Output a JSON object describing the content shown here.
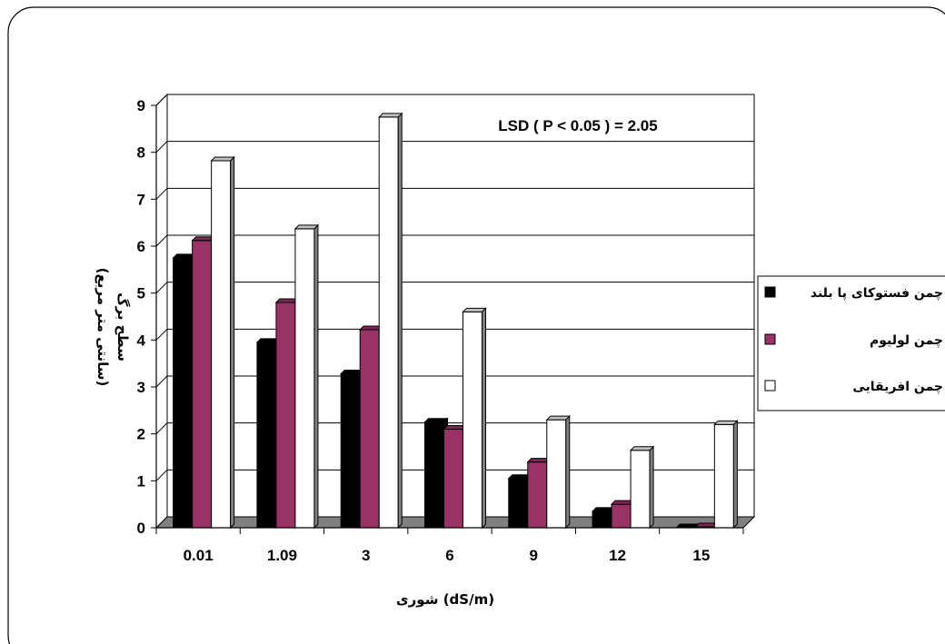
{
  "chart_data": {
    "type": "bar",
    "categories": [
      "0.01",
      "1.09",
      "3",
      "6",
      "9",
      "12",
      "15"
    ],
    "series": [
      {
        "name": "چمن فستوکای پا بلند",
        "color": "#000000",
        "values": [
          5.75,
          3.95,
          3.28,
          2.25,
          1.05,
          0.35,
          0.0
        ]
      },
      {
        "name": "چمن لولیوم",
        "color": "#993366",
        "values": [
          6.12,
          4.8,
          4.22,
          2.1,
          1.4,
          0.5,
          0.02
        ]
      },
      {
        "name": "چمن افریقایی",
        "color": "#ffffff",
        "values": [
          7.82,
          6.37,
          8.75,
          4.6,
          2.3,
          1.65,
          2.2
        ]
      }
    ],
    "ylim": [
      0,
      9
    ],
    "yticks": [
      "0",
      "1",
      "2",
      "3",
      "4",
      "5",
      "6",
      "7",
      "8",
      "9"
    ],
    "xlabel": "شوری (dS/m)",
    "ylabel_line1": "سطح برگ",
    "ylabel_line2": "(سانتی متر مربع)",
    "annotation": "LSD ( P < 0.05 ) = 2.05",
    "grid": true,
    "legend_position": "right",
    "floor_color": "#808080"
  }
}
